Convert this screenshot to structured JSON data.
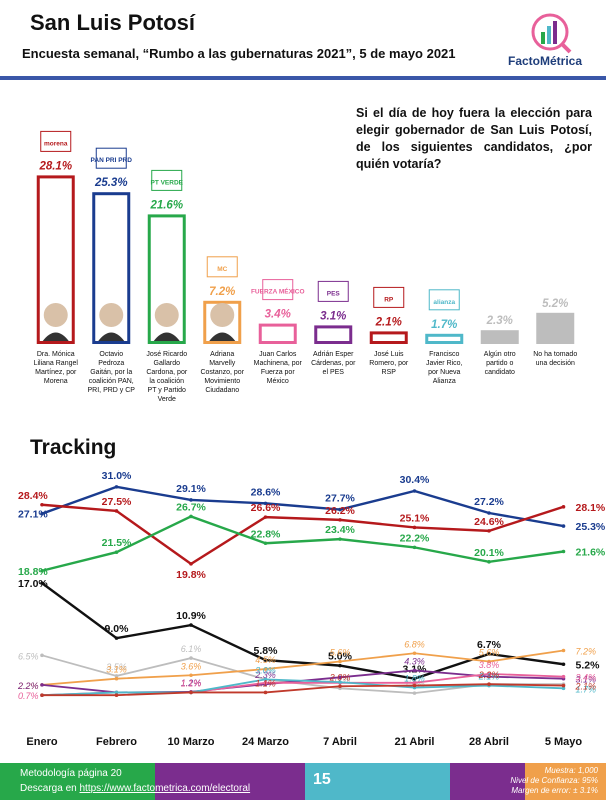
{
  "header": {
    "title": "San Luis Potosí",
    "subtitle": "Encuesta semanal, “Rumbo a las gubernaturas 2021”, 5 de mayo 2021",
    "logo_text": "FactoMétrica",
    "rule_color": "#3a57a8"
  },
  "question": "Si el día de hoy fuera la elección para elegir gobernador de San Luis Potosí, de los siguientes candidatos, ¿por quién votaría?",
  "chart_data": [
    {
      "type": "bar",
      "categories": [
        "Dra. Mónica Liliana Rangel Martínez, por Morena",
        "Octavio Pedroza Gaitán, por la coalición PAN, PRI, PRD y CP",
        "José Ricardo Gallardo Cardona, por la coalición PT y Partido Verde",
        "Adriana Marvelly Costanzo, por Movimiento Ciudadano",
        "Juan Carlos Machinena, por Fuerza por México",
        "Adrián Esper Cárdenas, por el PES",
        "José Luis Romero, por RSP",
        "Francisco Javier Rico, por Nueva Alianza",
        "Algún otro partido o candidato",
        "No ha tomado una decisión"
      ],
      "values": [
        28.1,
        25.3,
        21.6,
        7.2,
        3.4,
        3.1,
        2.1,
        1.7,
        2.3,
        5.2
      ],
      "labels": [
        "28.1%",
        "25.3%",
        "21.6%",
        "7.2%",
        "3.4%",
        "3.1%",
        "2.1%",
        "1.7%",
        "2.3%",
        "5.2%"
      ],
      "colors": [
        "#b5191c",
        "#1a3c8f",
        "#27a84a",
        "#f0a04b",
        "#e8609a",
        "#7b2d8e",
        "#b5191c",
        "#4fb8c9",
        "#bdbdbd",
        "#bdbdbd"
      ],
      "party_logos": [
        "morena",
        "PAN PRI PRD",
        "PT VERDE",
        "MC",
        "FUERZA MÉXICO",
        "PES",
        "RP",
        "alianza",
        "",
        ""
      ],
      "filled": [
        false,
        false,
        false,
        false,
        false,
        false,
        false,
        false,
        true,
        true
      ],
      "ylim": [
        0,
        30
      ]
    },
    {
      "type": "line",
      "title": "Tracking",
      "x": [
        "Enero",
        "Febrero",
        "10 Marzo",
        "24 Marzo",
        "7 Abril",
        "21 Abril",
        "28 Abril",
        "5 Mayo"
      ],
      "series": [
        {
          "color": "#1a3c8f",
          "values": [
            27.1,
            31.0,
            29.1,
            28.6,
            27.7,
            30.4,
            27.2,
            25.3
          ],
          "labels": [
            "27.1%",
            "31.0%",
            "29.1%",
            "28.6%",
            "27.7%",
            "30.4%",
            "27.2%",
            "25.3%"
          ]
        },
        {
          "color": "#b5191c",
          "values": [
            28.4,
            27.5,
            19.8,
            26.6,
            26.2,
            25.1,
            24.6,
            28.1
          ],
          "labels": [
            "28.4%",
            "27.5%",
            "19.8%",
            "26.6%",
            "26.2%",
            "25.1%",
            "24.6%",
            "28.1%"
          ]
        },
        {
          "color": "#27a84a",
          "values": [
            18.8,
            21.5,
            26.7,
            22.8,
            23.4,
            22.2,
            20.1,
            21.6
          ],
          "labels": [
            "18.8%",
            "21.5%",
            "26.7%",
            "22.8%",
            "23.4%",
            "22.2%",
            "20.1%",
            "21.6%"
          ]
        },
        {
          "color": "#111111",
          "values": [
            17.0,
            9.0,
            10.9,
            5.8,
            5.0,
            3.1,
            6.7,
            5.2
          ],
          "labels": [
            "17.0%",
            "9.0%",
            "10.9%",
            "5.8%",
            "5.0%",
            "3.1%",
            "6.7%",
            "5.2%"
          ]
        },
        {
          "color": "#bdbdbd",
          "values": [
            6.5,
            3.5,
            6.1,
            3.0,
            1.7,
            1.0,
            2.3,
            2.3
          ],
          "labels": [
            "6.5%",
            "3.5%",
            "6.1%",
            "",
            "1.7%",
            "1.0%",
            "",
            ""
          ]
        },
        {
          "color": "#f0a04b",
          "values": [
            2.2,
            3.1,
            3.6,
            4.5,
            5.6,
            6.8,
            5.6,
            7.2
          ],
          "labels": [
            "2.2%",
            "3.1%",
            "3.6%",
            "4.5%",
            "5.6%",
            "6.8%",
            "5.6%",
            "7.2%"
          ]
        },
        {
          "color": "#7b2d8e",
          "values": [
            2.2,
            1.1,
            1.2,
            2.3,
            3.3,
            4.3,
            3.4,
            3.1
          ],
          "labels": [
            "2.2%",
            "",
            "1.2%",
            "2.3%",
            "",
            "4.3%",
            "",
            "3.1%"
          ]
        },
        {
          "color": "#e8609a",
          "values": [
            0.7,
            1.1,
            1.1,
            2.5,
            2.5,
            2.5,
            3.8,
            3.4
          ],
          "labels": [
            "0.7%",
            "",
            "1.1%",
            "",
            "",
            "",
            "3.8%",
            "3.4%"
          ]
        },
        {
          "color": "#4fb8c9",
          "values": [
            0.7,
            1.1,
            1.1,
            3.0,
            2.6,
            1.8,
            2.1,
            1.7
          ],
          "labels": [
            "",
            "",
            "",
            "3.0%",
            "",
            "1.8%",
            "2.1%",
            "1.7%"
          ]
        },
        {
          "color": "#c0392b",
          "values": [
            0.7,
            0.7,
            1.1,
            1.1,
            2.0,
            2.1,
            2.3,
            2.1
          ],
          "labels": [
            "",
            "",
            "",
            "1.1%",
            "2.0%",
            "",
            "2.3%",
            "2.1%"
          ]
        }
      ],
      "ylim": [
        0,
        32
      ]
    }
  ],
  "footer": {
    "line1": "Metodología página 20",
    "line2_prefix": "Descarga en ",
    "link": "https://www.factometrica.com/electoral",
    "page": "15",
    "sample": "Muestra: 1,000",
    "confidence": "Nivel de Confianza: 95%",
    "error": "Margen de error: ± 3.1%",
    "bar_colors": [
      "#27a84a",
      "#7b2d8e",
      "#4fb8c9",
      "#7b2d8e",
      "#f0a04b"
    ]
  }
}
